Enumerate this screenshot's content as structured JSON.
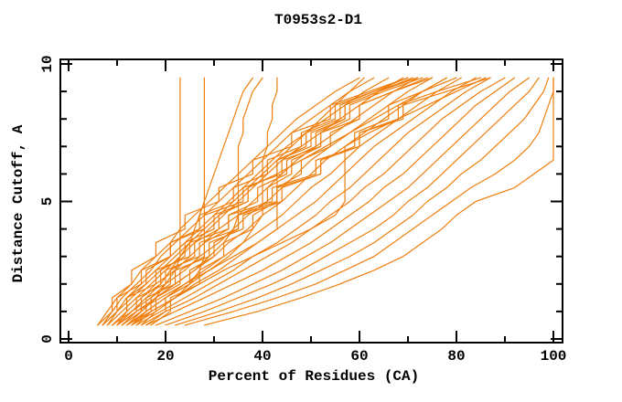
{
  "chart_data": {
    "type": "line",
    "title": "T0953s2-D1",
    "xlabel": "Percent of Residues (CA)",
    "ylabel": "Distance Cutoff, A",
    "xlim": [
      0,
      100
    ],
    "ylim": [
      0,
      10
    ],
    "grid": "off",
    "legend": "none",
    "axis_color": "#000000",
    "line_color": "#EF7F0F",
    "x_major_ticks": [
      0,
      20,
      40,
      60,
      80,
      100
    ],
    "x_minor_ticks": [
      10,
      30,
      50,
      70,
      90
    ],
    "y_major_ticks": [
      0,
      5,
      10
    ],
    "y_minor_ticks": [
      1,
      2,
      3,
      4,
      6,
      7,
      8,
      9
    ],
    "cutoffs": [
      0.5,
      1.0,
      1.5,
      2.0,
      2.5,
      3.0,
      3.5,
      4.0,
      4.5,
      5.0,
      5.5,
      6.0,
      6.5,
      7.0,
      7.5,
      8.0,
      8.5,
      9.0,
      9.5
    ],
    "series": [
      [
        28,
        39,
        48,
        56,
        63,
        69,
        73,
        77,
        80,
        84,
        92,
        96,
        100,
        100,
        100,
        100,
        100,
        100,
        100
      ],
      [
        24,
        34,
        43,
        51,
        57,
        63,
        67,
        71,
        75,
        79,
        83,
        88,
        92,
        95,
        97,
        98,
        99,
        100,
        100
      ],
      [
        22,
        31,
        39,
        46,
        52,
        58,
        63,
        67,
        71,
        74,
        78,
        81,
        85,
        88,
        91,
        94,
        96,
        98,
        99
      ],
      [
        20,
        28,
        35,
        42,
        48,
        53,
        58,
        63,
        67,
        70,
        74,
        77,
        80,
        83,
        86,
        89,
        92,
        95,
        97
      ],
      [
        18,
        25,
        32,
        38,
        44,
        49,
        54,
        58,
        62,
        66,
        70,
        73,
        76,
        79,
        82,
        85,
        88,
        91,
        95
      ],
      [
        16,
        22,
        28,
        34,
        40,
        45,
        50,
        54,
        58,
        62,
        65,
        69,
        72,
        75,
        78,
        81,
        84,
        88,
        92
      ],
      [
        15,
        20,
        26,
        31,
        36,
        41,
        46,
        50,
        54,
        58,
        61,
        65,
        68,
        71,
        74,
        77,
        81,
        85,
        90
      ],
      [
        14,
        19,
        24,
        29,
        34,
        38,
        43,
        47,
        51,
        54,
        58,
        61,
        64,
        67,
        70,
        74,
        78,
        82,
        87
      ],
      [
        13,
        17,
        22,
        26,
        31,
        35,
        39,
        43,
        47,
        51,
        54,
        57,
        60,
        63,
        67,
        71,
        75,
        79,
        84
      ],
      [
        12,
        16,
        20,
        24,
        28,
        32,
        36,
        40,
        44,
        47,
        50,
        54,
        57,
        60,
        64,
        68,
        72,
        76,
        81
      ],
      [
        11,
        15,
        18,
        22,
        26,
        30,
        33,
        37,
        40,
        44,
        47,
        50,
        53,
        57,
        61,
        65,
        69,
        73,
        78
      ],
      [
        10,
        13,
        17,
        20,
        24,
        27,
        31,
        34,
        37,
        41,
        44,
        47,
        50,
        54,
        58,
        62,
        66,
        70,
        75
      ],
      [
        9,
        12,
        15,
        18,
        22,
        25,
        28,
        31,
        35,
        38,
        41,
        44,
        47,
        51,
        55,
        59,
        63,
        67,
        72
      ],
      [
        8,
        11,
        14,
        17,
        20,
        23,
        26,
        29,
        32,
        35,
        38,
        41,
        44,
        48,
        52,
        56,
        60,
        64,
        69
      ],
      [
        7,
        10,
        12,
        15,
        18,
        21,
        24,
        27,
        30,
        33,
        36,
        39,
        42,
        45,
        49,
        53,
        57,
        61,
        66
      ],
      [
        6,
        9,
        11,
        14,
        17,
        19,
        22,
        25,
        28,
        31,
        34,
        37,
        40,
        43,
        46,
        50,
        54,
        58,
        63
      ],
      [
        6,
        8,
        10,
        13,
        15,
        18,
        21,
        23,
        26,
        29,
        32,
        35,
        38,
        41,
        44,
        47,
        51,
        55,
        60
      ],
      [
        9,
        12,
        12,
        18,
        18,
        25,
        25,
        33,
        33,
        42,
        42,
        51,
        51,
        60,
        60,
        69,
        69,
        78,
        87
      ],
      [
        11,
        14,
        14,
        20,
        20,
        27,
        27,
        35,
        35,
        43,
        43,
        52,
        52,
        60,
        60,
        68,
        68,
        76,
        85
      ],
      [
        13,
        16,
        16,
        22,
        22,
        29,
        29,
        36,
        36,
        44,
        44,
        52,
        52,
        59,
        59,
        66,
        66,
        73,
        80
      ],
      [
        8,
        10,
        10,
        15,
        15,
        21,
        21,
        28,
        28,
        36,
        36,
        44,
        44,
        52,
        52,
        60,
        60,
        67,
        74
      ],
      [
        7,
        9,
        9,
        13,
        13,
        18,
        18,
        24,
        24,
        31,
        31,
        38,
        38,
        46,
        46,
        54,
        54,
        62,
        70
      ],
      [
        10,
        12,
        12,
        16,
        16,
        21,
        21,
        27,
        27,
        34,
        34,
        41,
        41,
        48,
        48,
        55,
        55,
        63,
        72
      ],
      [
        12,
        15,
        15,
        19,
        19,
        24,
        24,
        30,
        30,
        37,
        37,
        43,
        43,
        50,
        50,
        57,
        57,
        64,
        71
      ],
      [
        14,
        17,
        17,
        21,
        21,
        26,
        26,
        31,
        31,
        37,
        37,
        43,
        43,
        49,
        49,
        56,
        56,
        63,
        70
      ],
      [
        15,
        18,
        18,
        23,
        23,
        28,
        28,
        33,
        33,
        39,
        39,
        45,
        45,
        51,
        51,
        57,
        57,
        64,
        72
      ],
      [
        16,
        20,
        20,
        25,
        25,
        30,
        30,
        35,
        35,
        41,
        41,
        46,
        46,
        52,
        52,
        58,
        58,
        65,
        73
      ],
      [
        17,
        21,
        21,
        27,
        27,
        32,
        32,
        38,
        38,
        43,
        43,
        48,
        48,
        54,
        54,
        60,
        60,
        67,
        75
      ],
      [
        11,
        15,
        18,
        20,
        22,
        23,
        23,
        23,
        23,
        23,
        23,
        23,
        23,
        23,
        23,
        23,
        23,
        23,
        23
      ],
      [
        13,
        18,
        22,
        25,
        27,
        28,
        28,
        28,
        28,
        28,
        28,
        28,
        28,
        28,
        28,
        28,
        28,
        28,
        28
      ],
      [
        10,
        14,
        18,
        22,
        26,
        29,
        32,
        34,
        35,
        35,
        35,
        35,
        35,
        35,
        36,
        36,
        37,
        38,
        40
      ],
      [
        12,
        16,
        20,
        25,
        29,
        33,
        36,
        38,
        40,
        40,
        40,
        40,
        40,
        41,
        41,
        42,
        42,
        43,
        43
      ],
      [
        9,
        13,
        16,
        19,
        21,
        23,
        25,
        26,
        27,
        28,
        29,
        30,
        31,
        32,
        33,
        34,
        35,
        36,
        38
      ],
      [
        7,
        10,
        13,
        16,
        19,
        22,
        25,
        28,
        31,
        34,
        37,
        40,
        43,
        46,
        49,
        52,
        55,
        58,
        61
      ],
      [
        12,
        17,
        22,
        27,
        32,
        38,
        44,
        50,
        55,
        57,
        57,
        57,
        57,
        57,
        62,
        68,
        74,
        80,
        86
      ],
      [
        10,
        14,
        19,
        24,
        29,
        34,
        39,
        43,
        43,
        43,
        43,
        43,
        48,
        53,
        58,
        63,
        68,
        73,
        78
      ]
    ]
  }
}
